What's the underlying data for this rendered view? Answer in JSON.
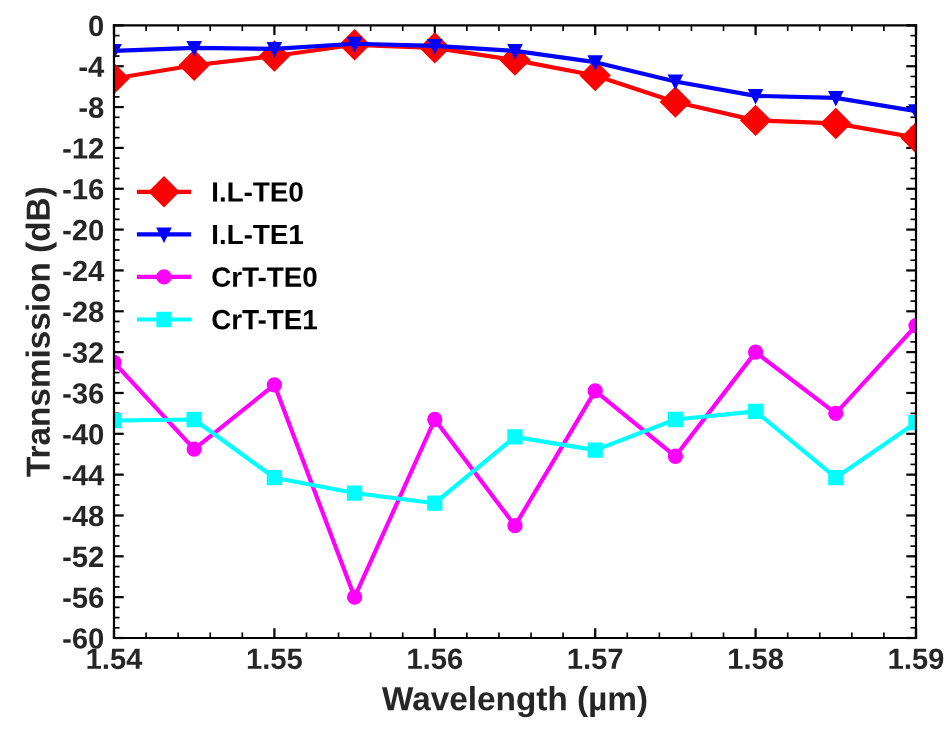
{
  "chart_data": {
    "type": "line",
    "xlabel": "Wavelength (µm)",
    "ylabel": "Transmission (dB)",
    "x": [
      1.54,
      1.545,
      1.55,
      1.555,
      1.56,
      1.565,
      1.57,
      1.575,
      1.58,
      1.585,
      1.59
    ],
    "xlim": [
      1.54,
      1.59
    ],
    "xticks": [
      1.54,
      1.55,
      1.56,
      1.57,
      1.58,
      1.59
    ],
    "ylim": [
      -60,
      0
    ],
    "yticks": [
      -60,
      -56,
      -52,
      -48,
      -44,
      -40,
      -36,
      -32,
      -28,
      -24,
      -20,
      -16,
      -12,
      -8,
      -4,
      0
    ],
    "grid": false,
    "legend": "left",
    "line_style": "solid",
    "series": [
      {
        "name": "I.L-TE0",
        "color": "#ff0000",
        "marker": "diamond",
        "values": [
          -5.2,
          -3.9,
          -3.0,
          -1.9,
          -2.2,
          -3.4,
          -4.9,
          -7.5,
          -9.3,
          -9.6,
          -11.0
        ]
      },
      {
        "name": "I.L-TE1",
        "color": "#0000ff",
        "marker": "triangle",
        "values": [
          -2.5,
          -2.2,
          -2.3,
          -1.8,
          -2.0,
          -2.5,
          -3.6,
          -5.5,
          -6.9,
          -7.1,
          -8.4
        ]
      },
      {
        "name": "CrT-TE0",
        "color": "#ff00ff",
        "marker": "circle",
        "values": [
          -33.0,
          -41.5,
          -35.2,
          -56.0,
          -38.6,
          -49.0,
          -35.8,
          -42.2,
          -32.0,
          -38.0,
          -29.4
        ]
      },
      {
        "name": "CrT-TE1",
        "color": "#00ffff",
        "marker": "square",
        "values": [
          -38.7,
          -38.6,
          -44.3,
          -45.8,
          -46.8,
          -40.3,
          -41.6,
          -38.6,
          -37.8,
          -44.3,
          -38.9
        ]
      }
    ]
  }
}
